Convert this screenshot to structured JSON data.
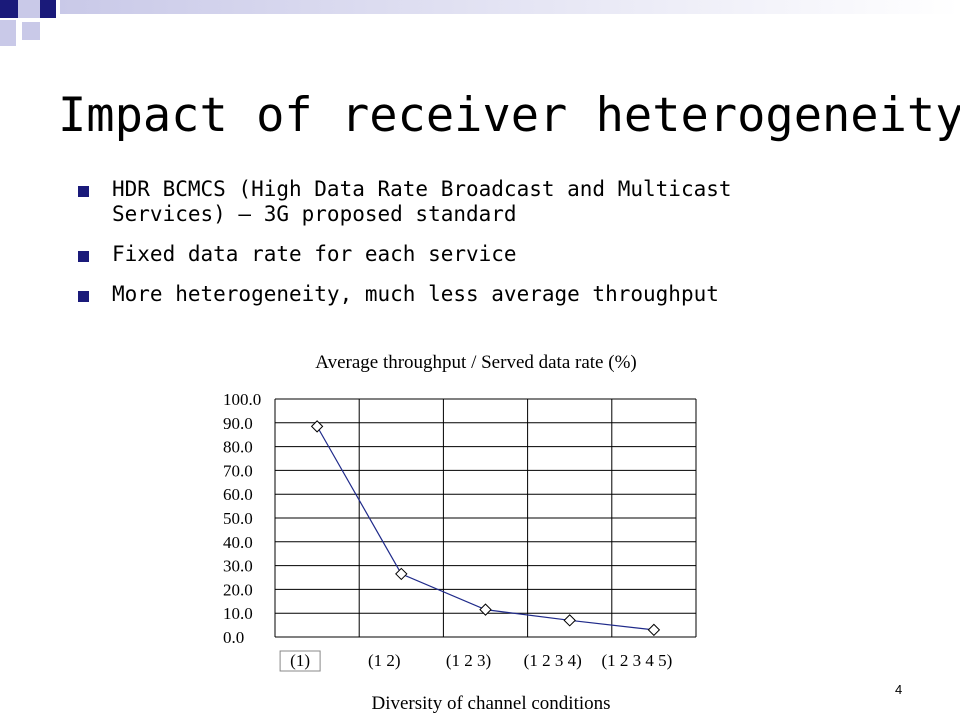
{
  "slide": {
    "title": "Impact of receiver heterogeneity",
    "bullets": [
      "HDR BCMCS (High Data Rate Broadcast and Multicast Services) – 3G proposed standard",
      "Fixed data rate for each service",
      "More heterogeneity, much less average throughput"
    ],
    "page_number": "4"
  },
  "colors": {
    "accent": "#1a1a7a",
    "series_line": "#1f2a8a"
  },
  "chart_data": {
    "type": "line",
    "title": "Average throughput / Served data rate (%)",
    "xlabel": "Diversity of channel conditions",
    "ylabel": "",
    "categories": [
      "(1)",
      "(1 2)",
      "(1 2 3)",
      "(1 2 3 4)",
      "(1 2 3 4 5)"
    ],
    "series": [
      {
        "values": [
          88.5,
          26.5,
          11.5,
          7.0,
          3.0
        ]
      }
    ],
    "ylim": [
      0,
      100
    ],
    "yticks": [
      "100.0",
      "90.0",
      "80.0",
      "70.0",
      "60.0",
      "50.0",
      "40.0",
      "30.0",
      "20.0",
      "10.0",
      "0.0"
    ],
    "marker": "diamond",
    "grid": true
  }
}
